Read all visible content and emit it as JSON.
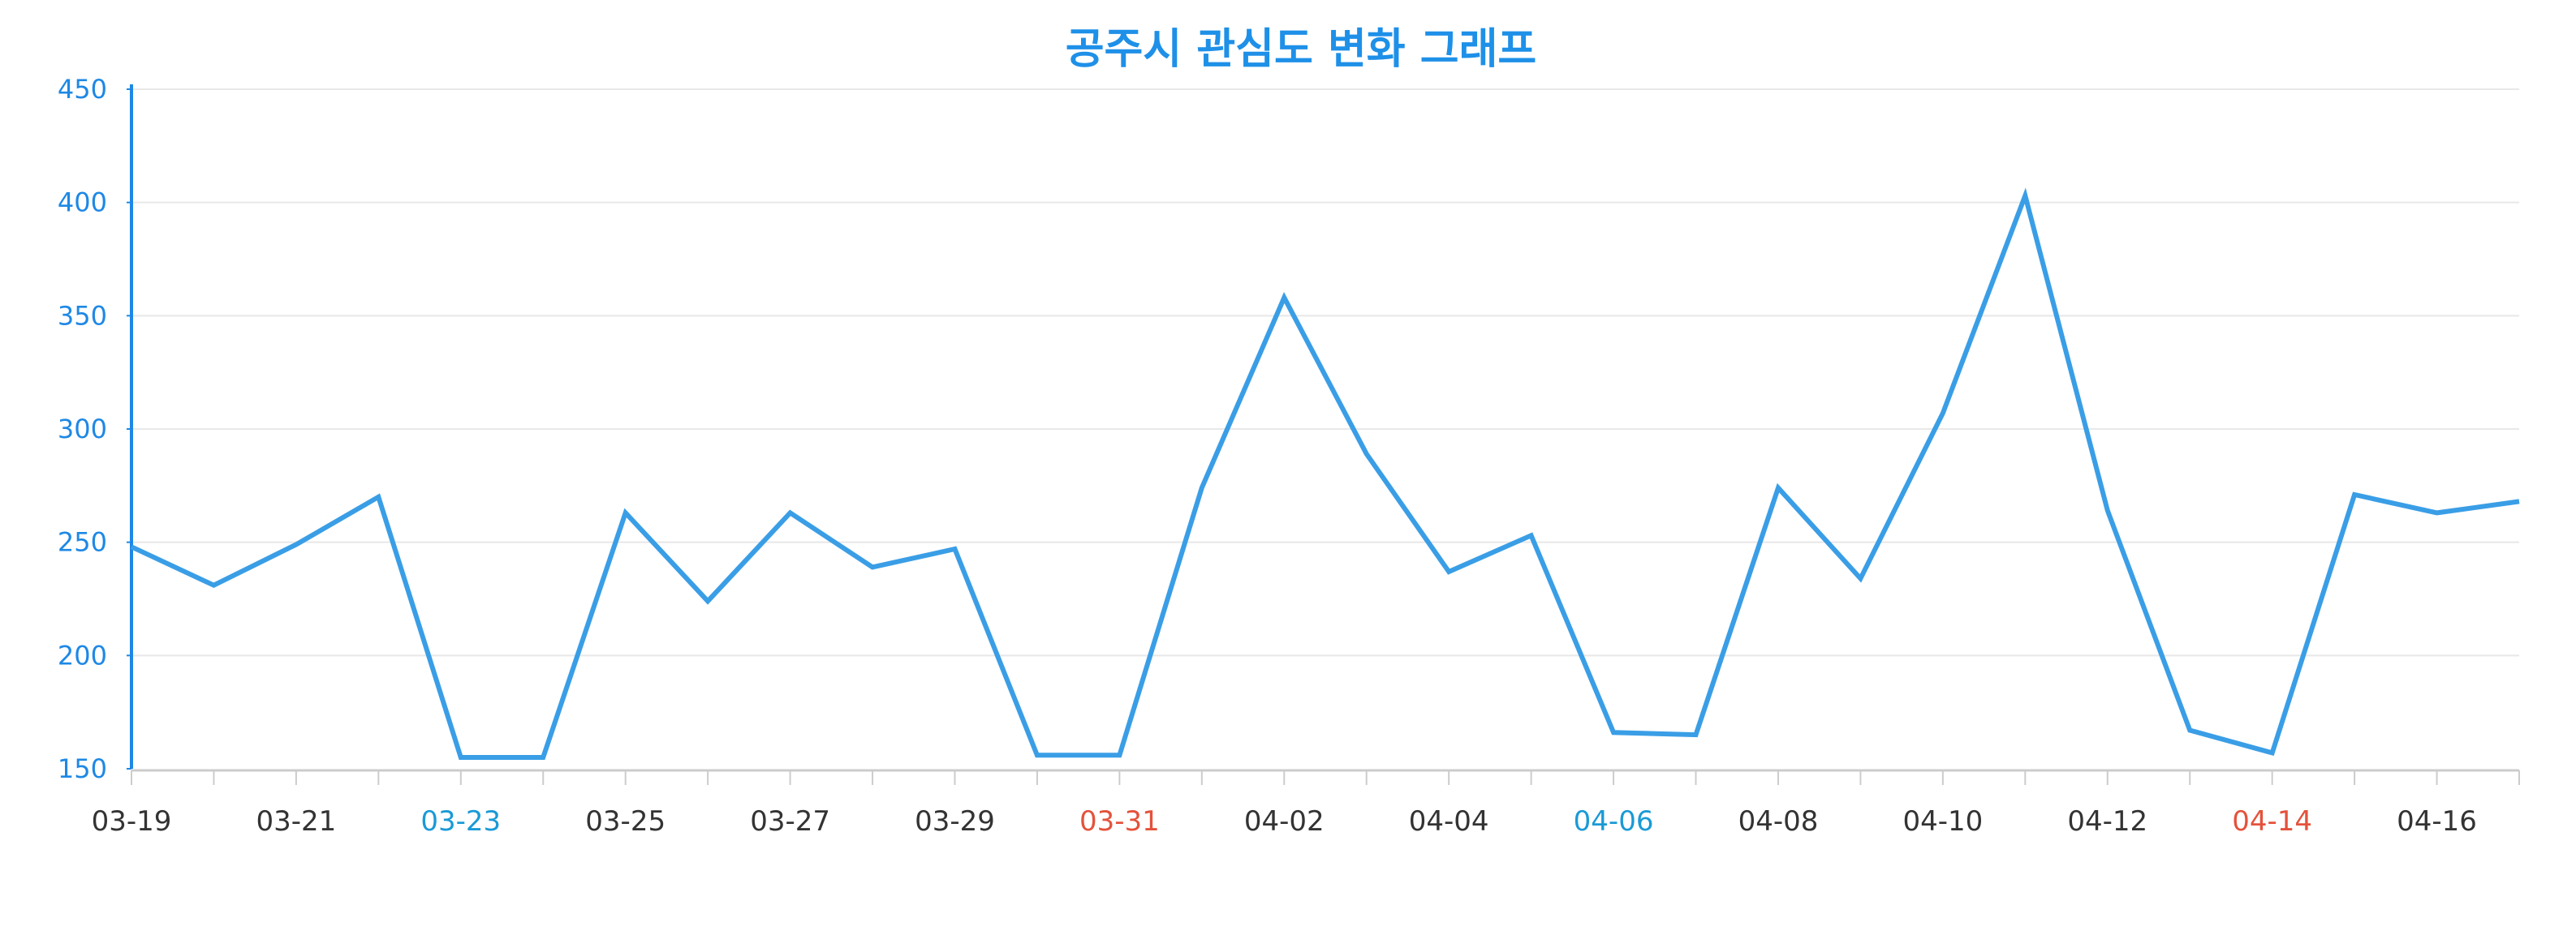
{
  "chart_data": {
    "type": "line",
    "title": "공주시 관심도 변화 그래프",
    "xlabel": "",
    "ylabel": "",
    "ylim": [
      150,
      450
    ],
    "yticks": [
      150,
      200,
      250,
      300,
      350,
      400,
      450
    ],
    "grid": true,
    "legend": "none",
    "x": [
      "03-19",
      "03-20",
      "03-21",
      "03-22",
      "03-23",
      "03-24",
      "03-25",
      "03-26",
      "03-27",
      "03-28",
      "03-29",
      "03-30",
      "03-31",
      "04-01",
      "04-02",
      "04-03",
      "04-04",
      "04-05",
      "04-06",
      "04-07",
      "04-08",
      "04-09",
      "04-10",
      "04-11",
      "04-12",
      "04-13",
      "04-14",
      "04-15",
      "04-16",
      "04-17"
    ],
    "x_tick_labels": [
      {
        "label": "03-19",
        "color": "#333333"
      },
      {
        "label": "03-21",
        "color": "#333333"
      },
      {
        "label": "03-23",
        "color": "#1a9ad6"
      },
      {
        "label": "03-25",
        "color": "#333333"
      },
      {
        "label": "03-27",
        "color": "#333333"
      },
      {
        "label": "03-29",
        "color": "#333333"
      },
      {
        "label": "03-31",
        "color": "#e4523b"
      },
      {
        "label": "04-02",
        "color": "#333333"
      },
      {
        "label": "04-04",
        "color": "#333333"
      },
      {
        "label": "04-06",
        "color": "#1a9ad6"
      },
      {
        "label": "04-08",
        "color": "#333333"
      },
      {
        "label": "04-10",
        "color": "#333333"
      },
      {
        "label": "04-12",
        "color": "#333333"
      },
      {
        "label": "04-14",
        "color": "#e4523b"
      },
      {
        "label": "04-16",
        "color": "#333333"
      }
    ],
    "series": [
      {
        "values": [
          248,
          231,
          249,
          270,
          155,
          155,
          263,
          224,
          263,
          239,
          247,
          156,
          156,
          274,
          358,
          289,
          237,
          253,
          166,
          165,
          274,
          234,
          307,
          403,
          264,
          167,
          157,
          271,
          263,
          268
        ]
      }
    ],
    "colors": {
      "line": "#3a9ee6",
      "title": "#1e90e8",
      "axis": "#1e88e5",
      "ytick": "#1e88e5",
      "grid": "#e8e8e8",
      "xaxis": "#cccccc"
    }
  }
}
